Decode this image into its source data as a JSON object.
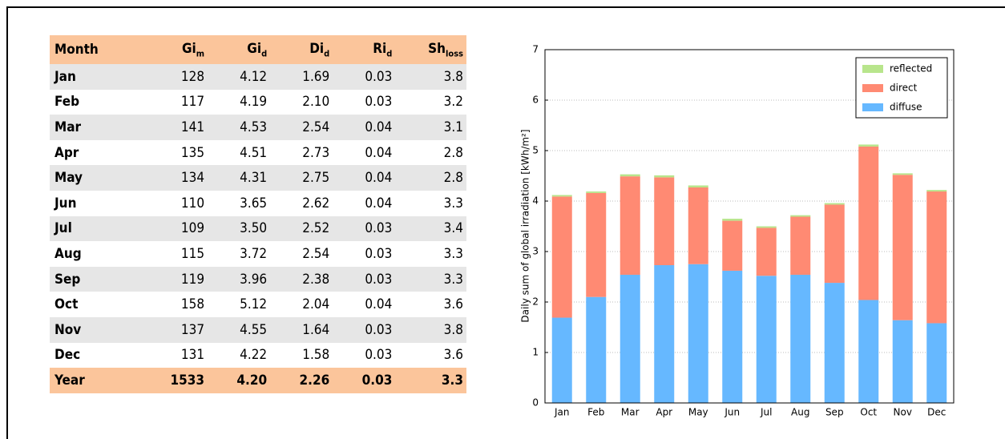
{
  "table": {
    "header": [
      "Month",
      {
        "main": "Gi",
        "sub": "m"
      },
      {
        "main": "Gi",
        "sub": "d"
      },
      {
        "main": "Di",
        "sub": "d"
      },
      {
        "main": "Ri",
        "sub": "d"
      },
      {
        "main": "Sh",
        "sub": "loss"
      }
    ],
    "rows": [
      [
        "Jan",
        "128",
        "4.12",
        "1.69",
        "0.03",
        "3.8"
      ],
      [
        "Feb",
        "117",
        "4.19",
        "2.10",
        "0.03",
        "3.2"
      ],
      [
        "Mar",
        "141",
        "4.53",
        "2.54",
        "0.04",
        "3.1"
      ],
      [
        "Apr",
        "135",
        "4.51",
        "2.73",
        "0.04",
        "2.8"
      ],
      [
        "May",
        "134",
        "4.31",
        "2.75",
        "0.04",
        "2.8"
      ],
      [
        "Jun",
        "110",
        "3.65",
        "2.62",
        "0.04",
        "3.3"
      ],
      [
        "Jul",
        "109",
        "3.50",
        "2.52",
        "0.03",
        "3.4"
      ],
      [
        "Aug",
        "115",
        "3.72",
        "2.54",
        "0.03",
        "3.3"
      ],
      [
        "Sep",
        "119",
        "3.96",
        "2.38",
        "0.03",
        "3.3"
      ],
      [
        "Oct",
        "158",
        "5.12",
        "2.04",
        "0.04",
        "3.6"
      ],
      [
        "Nov",
        "137",
        "4.55",
        "1.64",
        "0.03",
        "3.8"
      ],
      [
        "Dec",
        "131",
        "4.22",
        "1.58",
        "0.03",
        "3.6"
      ]
    ],
    "footer": [
      "Year",
      "1533",
      "4.20",
      "2.26",
      "0.03",
      "3.3"
    ]
  },
  "chart_data": {
    "type": "stacked_bar",
    "ylabel": "Daily sum of global irradiation [kWh/m²]",
    "categories": [
      "Jan",
      "Feb",
      "Mar",
      "Apr",
      "May",
      "Jun",
      "Jul",
      "Aug",
      "Sep",
      "Oct",
      "Nov",
      "Dec"
    ],
    "series": [
      {
        "name": "diffuse",
        "color": "#66b8ff",
        "values": [
          1.69,
          2.1,
          2.54,
          2.73,
          2.75,
          2.62,
          2.52,
          2.54,
          2.38,
          2.04,
          1.64,
          1.58
        ]
      },
      {
        "name": "direct",
        "color": "#ff8a73",
        "values": [
          2.4,
          2.06,
          1.95,
          1.74,
          1.52,
          0.99,
          0.95,
          1.15,
          1.55,
          3.04,
          2.88,
          2.61
        ]
      },
      {
        "name": "reflected",
        "color": "#b8e58c",
        "values": [
          0.03,
          0.03,
          0.04,
          0.04,
          0.04,
          0.04,
          0.03,
          0.03,
          0.03,
          0.04,
          0.03,
          0.03
        ]
      }
    ],
    "ylim": [
      0,
      7
    ],
    "yticks": [
      0,
      1,
      2,
      3,
      4,
      5,
      6,
      7
    ],
    "grid": true,
    "legend": "upper right"
  }
}
